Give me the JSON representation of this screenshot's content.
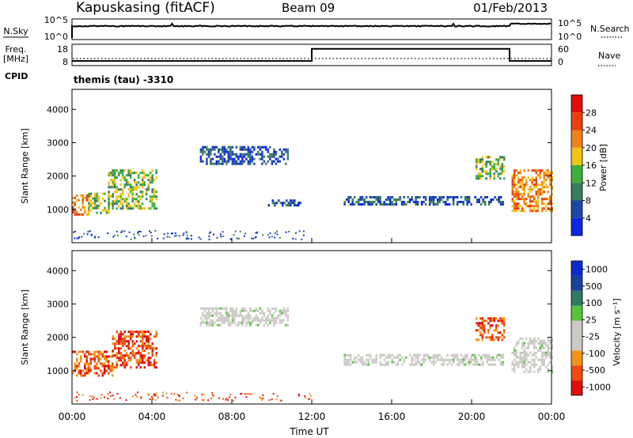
{
  "header": {
    "station": "Kapuskasing (fitACF)",
    "beam": "Beam 09",
    "date": "01/Feb/2013"
  },
  "nsky_panel": {
    "left_label": "N.Sky",
    "left_ticks": [
      "10^5",
      "10^0"
    ],
    "right_ticks": [
      "10^5",
      "10^0"
    ],
    "right_label": "N.Search"
  },
  "freq_panel": {
    "left_label_1": "Freq.",
    "left_label_2": "[MHz]",
    "left_ticks": [
      "18",
      "8"
    ],
    "right_ticks": [
      "60",
      "0"
    ],
    "right_label": "Nave"
  },
  "cpid": {
    "label": "CPID",
    "value": "themis (tau) -3310"
  },
  "colors": {
    "power_scale": [
      "#0b27e0",
      "#1c46a8",
      "#3a7c5e",
      "#3fae3a",
      "#f0c419",
      "#f0821a",
      "#e8400f",
      "#e00d0d"
    ],
    "velocity_scale": [
      "#e00d0d",
      "#ee4a12",
      "#f29417",
      "#cccac4",
      "#cccac4",
      "#55c43a",
      "#2f7a64",
      "#1b3f9a",
      "#0a2ccc"
    ]
  },
  "chart_data": [
    {
      "type": "heatmap",
      "name": "power",
      "ylabel": "Slant Range [km]",
      "yticks": [
        "1000",
        "2000",
        "3000",
        "4000"
      ],
      "ylim": [
        0,
        4600
      ],
      "xlim": [
        0,
        24
      ],
      "colorbar": {
        "label": "Power [dB]",
        "ticks": [
          "4",
          "8",
          "12",
          "16",
          "20",
          "24",
          "28"
        ]
      },
      "regions": [
        {
          "x": [
            0.0,
            0.8
          ],
          "y": [
            850,
            1450
          ],
          "level": "high"
        },
        {
          "x": [
            0.8,
            1.8
          ],
          "y": [
            900,
            1500
          ],
          "level": "mid"
        },
        {
          "x": [
            1.8,
            4.2
          ],
          "y": [
            1050,
            2200
          ],
          "level": "mid"
        },
        {
          "x": [
            6.4,
            10.8
          ],
          "y": [
            2350,
            2900
          ],
          "level": "low"
        },
        {
          "x": [
            9.8,
            11.4
          ],
          "y": [
            1150,
            1300
          ],
          "level": "low"
        },
        {
          "x": [
            13.6,
            21.6
          ],
          "y": [
            1150,
            1400
          ],
          "level": "low"
        },
        {
          "x": [
            20.2,
            21.6
          ],
          "y": [
            1900,
            2600
          ],
          "level": "mid"
        },
        {
          "x": [
            22.0,
            24.0
          ],
          "y": [
            950,
            2200
          ],
          "level": "high"
        }
      ]
    },
    {
      "type": "heatmap",
      "name": "velocity",
      "ylabel": "Slant Range [km]",
      "yticks": [
        "1000",
        "2000",
        "3000",
        "4000"
      ],
      "ylim": [
        0,
        4600
      ],
      "xlim": [
        0,
        24
      ],
      "xlabel": "Time UT",
      "xticks": [
        "00:00",
        "04:00",
        "08:00",
        "12:00",
        "16:00",
        "20:00",
        "00:00"
      ],
      "colorbar": {
        "label": "Velocity [m s⁻¹]",
        "ticks": [
          "1000",
          "500",
          "100",
          "25",
          "-25",
          "-100",
          "-500",
          "-1000"
        ]
      },
      "regions": [
        {
          "x": [
            0.0,
            2.0
          ],
          "y": [
            850,
            1600
          ],
          "level": "neg"
        },
        {
          "x": [
            2.0,
            4.2
          ],
          "y": [
            1100,
            2200
          ],
          "level": "neg"
        },
        {
          "x": [
            6.4,
            10.8
          ],
          "y": [
            2350,
            2900
          ],
          "level": "ground"
        },
        {
          "x": [
            13.6,
            21.6
          ],
          "y": [
            1150,
            1500
          ],
          "level": "ground"
        },
        {
          "x": [
            20.2,
            21.6
          ],
          "y": [
            1900,
            2600
          ],
          "level": "neg"
        },
        {
          "x": [
            22.0,
            24.0
          ],
          "y": [
            950,
            2000
          ],
          "level": "ground"
        }
      ]
    },
    {
      "type": "line",
      "name": "freq",
      "ylim": [
        8,
        18
      ],
      "xlim": [
        0,
        24
      ],
      "x": [
        0,
        12,
        12,
        21.9,
        21.9,
        24
      ],
      "y": [
        10.2,
        10.2,
        15.9,
        15.9,
        10.2,
        10.2
      ]
    }
  ]
}
